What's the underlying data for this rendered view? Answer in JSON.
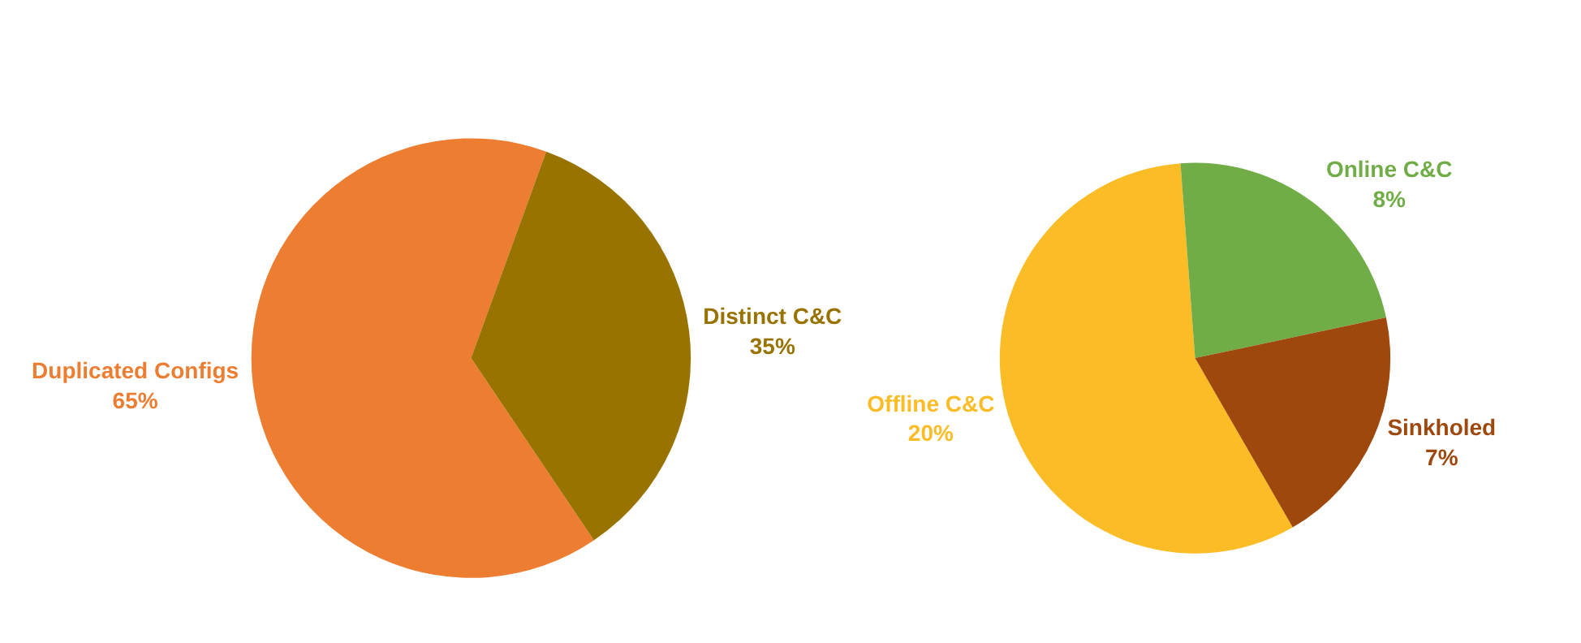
{
  "chart_data": [
    {
      "type": "pie",
      "categories": [
        "Duplicated Configs",
        "Distinct C&C"
      ],
      "values": [
        65,
        35
      ],
      "colors": [
        "#ed7d31",
        "#997300"
      ],
      "value_labels": [
        "65%",
        "35%"
      ],
      "legend": false
    },
    {
      "type": "pie",
      "categories": [
        "Offline C&C",
        "Online C&C",
        "Sinkholed"
      ],
      "values": [
        20,
        8,
        7
      ],
      "colors": [
        "#fbbc26",
        "#70ad47",
        "#9e480e"
      ],
      "value_labels": [
        "20%",
        "8%",
        "7%"
      ],
      "legend": false
    }
  ]
}
